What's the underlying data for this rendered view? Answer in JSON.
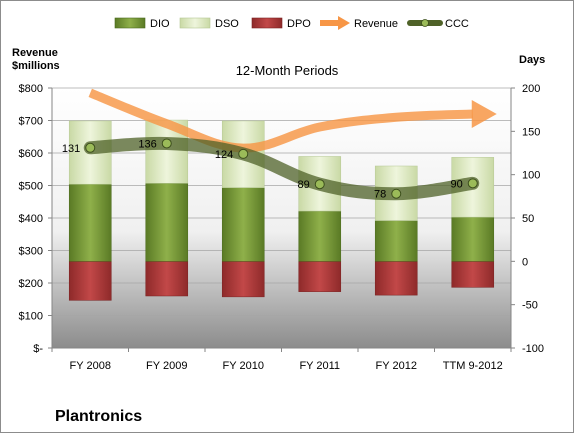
{
  "chart_data": {
    "type": "bar",
    "subtitle": "12-Month Periods",
    "company": "Plantronics",
    "left_axis_title_lines": [
      "Revenue",
      "$millions"
    ],
    "right_axis_title": "Days",
    "categories": [
      "FY 2008",
      "FY 2009",
      "FY 2010",
      "FY 2011",
      "FY 2012",
      "TTM 9-2012"
    ],
    "left_axis": {
      "min": 0,
      "max": 800,
      "step": 100,
      "tick_labels": [
        "$-",
        "$100",
        "$200",
        "$300",
        "$400",
        "$500",
        "$600",
        "$700",
        "$800"
      ]
    },
    "right_axis": {
      "min": -100,
      "max": 200,
      "step": 50,
      "tick_labels": [
        "-100",
        "-50",
        "0",
        "50",
        "100",
        "150",
        "200"
      ]
    },
    "legend": [
      "DIO",
      "DSO",
      "DPO",
      "Revenue",
      "CCC"
    ],
    "series": [
      {
        "name": "DIO",
        "axis": "days",
        "values": [
          89,
          90,
          85,
          58,
          47,
          51
        ]
      },
      {
        "name": "DSO",
        "axis": "days",
        "values": [
          73,
          73,
          77,
          63,
          63,
          69
        ]
      },
      {
        "name": "DPO",
        "axis": "days",
        "values": [
          -45,
          -40,
          -41,
          -35,
          -39,
          -30
        ]
      },
      {
        "name": "Revenue",
        "axis": "revenue",
        "values": [
          785,
          690,
          615,
          680,
          710,
          720
        ]
      },
      {
        "name": "CCC",
        "axis": "days",
        "values": [
          131,
          136,
          124,
          89,
          78,
          90
        ]
      }
    ],
    "ccc_labels": [
      "131",
      "136",
      "124",
      "89",
      "78",
      "90"
    ],
    "colors": {
      "dio": "#77933c",
      "dso": "#d7e4bd",
      "dpo": "#b03a3a",
      "revenue": "#f79646",
      "ccc": "#4f6228",
      "marker": "#9bbb59"
    }
  }
}
